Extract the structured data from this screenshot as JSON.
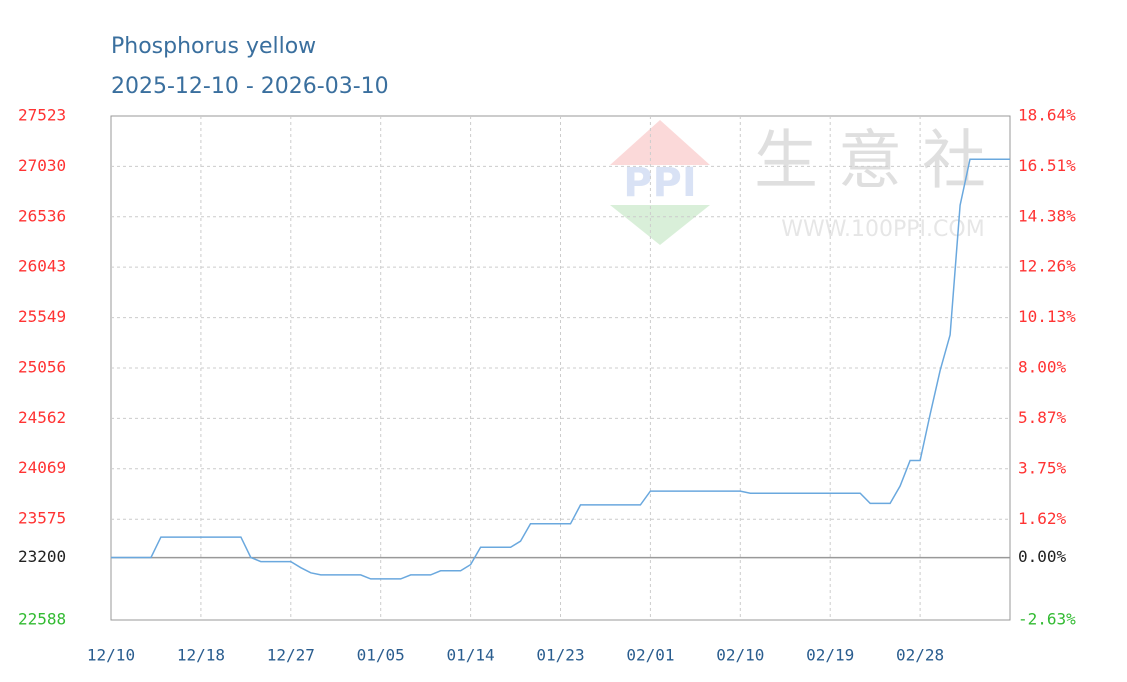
{
  "chart_data": {
    "type": "line",
    "title": "Phosphorus yellow",
    "subtitle": "2025-12-10 - 2026-03-10",
    "watermark": {
      "logo": "PPI",
      "name": "生意社",
      "url": "WWW.100PPI.COM"
    },
    "categories": [
      "12/10",
      null,
      null,
      null,
      null,
      null,
      null,
      null,
      null,
      "12/18",
      null,
      null,
      null,
      null,
      null,
      null,
      null,
      null,
      "12/27",
      null,
      null,
      null,
      null,
      null,
      null,
      null,
      null,
      "01/05",
      null,
      null,
      null,
      null,
      null,
      null,
      null,
      null,
      "01/14",
      null,
      null,
      null,
      null,
      null,
      null,
      null,
      null,
      "01/23",
      null,
      null,
      null,
      null,
      null,
      null,
      null,
      null,
      "02/01",
      null,
      null,
      null,
      null,
      null,
      null,
      null,
      null,
      "02/10",
      null,
      null,
      null,
      null,
      null,
      null,
      null,
      null,
      "02/19",
      null,
      null,
      null,
      null,
      null,
      null,
      null,
      null,
      "02/28",
      null,
      null,
      null,
      null,
      null,
      null,
      null,
      null,
      null
    ],
    "values": [
      23200,
      23200,
      23200,
      23200,
      23200,
      23400,
      23400,
      23400,
      23400,
      23400,
      23400,
      23400,
      23400,
      23400,
      23200,
      23160,
      23160,
      23160,
      23160,
      23100,
      23050,
      23030,
      23030,
      23030,
      23030,
      23030,
      22990,
      22990,
      22990,
      22990,
      23030,
      23030,
      23030,
      23070,
      23070,
      23070,
      23130,
      23300,
      23300,
      23300,
      23300,
      23360,
      23530,
      23530,
      23530,
      23530,
      23530,
      23715,
      23715,
      23715,
      23715,
      23715,
      23715,
      23715,
      23850,
      23850,
      23850,
      23850,
      23850,
      23850,
      23850,
      23850,
      23850,
      23850,
      23830,
      23830,
      23830,
      23830,
      23830,
      23830,
      23830,
      23830,
      23830,
      23830,
      23830,
      23830,
      23730,
      23730,
      23730,
      23900,
      24150,
      24150,
      24600,
      25030,
      25380,
      26650,
      27100,
      27100,
      27100,
      27100,
      27100
    ],
    "color": "#6aa8de",
    "ylim": [
      22588,
      27523
    ],
    "yticks": [
      22588,
      23200,
      23575,
      24069,
      24562,
      25056,
      25549,
      26043,
      26536,
      27030,
      27523
    ],
    "y2lim": [
      -2.63,
      18.64
    ],
    "y2ticks": [
      {
        "value": -2.63,
        "label": "-2.63%"
      },
      {
        "value": 0,
        "label": "0.00%"
      },
      {
        "value": 1.62,
        "label": "1.62%"
      },
      {
        "value": 3.75,
        "label": "3.75%"
      },
      {
        "value": 5.87,
        "label": "5.87%"
      },
      {
        "value": 8,
        "label": "8.00%"
      },
      {
        "value": 10.13,
        "label": "10.13%"
      },
      {
        "value": 12.26,
        "label": "12.26%"
      },
      {
        "value": 14.38,
        "label": "14.38%"
      },
      {
        "value": 16.51,
        "label": "16.51%"
      },
      {
        "value": 18.64,
        "label": "18.64%"
      }
    ],
    "tick_colors": {
      "above": "#ff3333",
      "base": "#222222",
      "below": "#33bb33"
    },
    "grid": true
  }
}
